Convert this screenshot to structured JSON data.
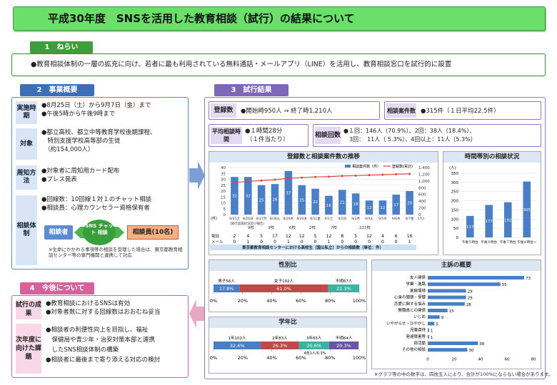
{
  "title": "平成30年度　SNSを活用した教育相談（試行）の結果について",
  "aim": {
    "header": "1　ねらい",
    "text": "●教育相談体制の一層の拡充に向け、若者に最も利用されている無料通話・メールアプリ（LINE）を活用し、教育相談窓口を試行的に設置"
  },
  "overview": {
    "header": "2　事業概要",
    "period": {
      "label": "実施時期",
      "lines": [
        "●8月25日（土）から9月7日（金）まで",
        "●午後5時から午後9時まで"
      ]
    },
    "target": {
      "label": "対象",
      "lines": [
        "●都立高校、都立中等教育学校後期課程、",
        "　特別支援学校高等部の生徒",
        "　（約154,000人）"
      ]
    },
    "notice": {
      "label": "周知方法",
      "lines": [
        "●対象者に周知用カード配布",
        "●プレス発表"
      ]
    },
    "system": {
      "label": "相談体制",
      "lines": [
        "●回線数：10回線１対１のチャット相談",
        "●相談員：心理カウンセラー資格保有者"
      ],
      "from": "相談者",
      "via": "SNS チャット 相談",
      "to": "相談員(10名)",
      "note": "※生命にかかわる事項等の相談を受理した場合は、東京都教育相談センター等の専門機関と連携して対応"
    }
  },
  "future": {
    "header": "4　今後について",
    "results": {
      "label": "試行の成果",
      "lines": [
        "●教育相談におけるSNSは有効",
        "●対象者数に対する回線数はおおむね妥当"
      ]
    },
    "issues": {
      "label": "次年度に向けた課題",
      "lines": [
        "●相談者の利便性向上を目指し、福祉",
        "　保健局や青少年・治安対策本部と連携",
        "　したSNS相談体制の構築",
        "●相談者に最後まで寄り添える対応の検討"
      ]
    }
  },
  "results": {
    "header": "3　試行結果",
    "registrations": {
      "label": "登録数",
      "value": "●開始時950人 ⇒ 終了時1,210人"
    },
    "cases": {
      "label": "相談案件数",
      "value": "●315件（１日平均22.5件）"
    },
    "avg_time": {
      "label": "平均相談時間",
      "value": "●１時間28分",
      "sub": "（１件当たり）"
    },
    "count": {
      "label": "相談回数",
      "lines": [
        "●１回：146人（70.9%）、2回：38人（18.4%）、",
        "　3回：　11人（  5.3%）、4回以上：11人（5.3%）"
      ]
    },
    "trend": {
      "title": "登録数と相談案件数の推移",
      "legend": [
        "相談案件数（件）",
        "登録数(累計)"
      ],
      "yleft": [
        "40",
        "35",
        "30",
        "25",
        "20",
        "15",
        "10",
        "5",
        "0"
      ],
      "yright": [
        "1,400",
        "1,200",
        "1,000",
        "800",
        "600",
        "400",
        "200",
        "0"
      ],
      "note": "（試行実施状況及び報告）",
      "xunit": "(件)",
      "yunit": "(人)"
    },
    "school_bar": {
      "label": "東京都教育相談センターにおける高校生（国公私立）からの相談数（単位：件）",
      "row_label": "電話",
      "row2_label": "メール"
    },
    "time_band": {
      "title": "時間帯別の相談状況",
      "unit": "(人)",
      "yticks": [
        "350",
        "300",
        "250",
        "200",
        "150",
        "100",
        "50",
        "0"
      ]
    },
    "gender": {
      "title": "性別比",
      "labels": [
        "男子56人",
        "女子192人",
        "不明67人"
      ]
    },
    "grade": {
      "title": "学年比",
      "labels": [
        "1年102人",
        "2年83人",
        "3年65人",
        "不明64人"
      ],
      "extra": "4年1人/0.3%"
    },
    "topics": {
      "title": "主訴の概要",
      "note": "※グラフ等の中の数字は、四捨五入により、合計が100%にならない場合があります。"
    }
  },
  "chart_data": [
    {
      "type": "bar",
      "title": "登録数と相談案件数の推移",
      "categories": [
        "8/25土",
        "8/26日",
        "8/27月",
        "8/28火",
        "8/29水",
        "8/30木",
        "8/31金",
        "9/1土",
        "9/2日",
        "9/3月",
        "9/4火",
        "9/5水",
        "9/6木",
        "9/7金"
      ],
      "series": [
        {
          "name": "相談案件数（件）",
          "values": [
            32,
            32,
            25,
            26,
            37,
            25,
            22,
            16,
            21,
            18,
            12,
            12,
            17,
            20
          ]
        },
        {
          "name": "登録数(累計)",
          "values": [
            950,
            990,
            1010,
            1040,
            1080,
            1100,
            1120,
            1130,
            1150,
            1160,
            1175,
            1185,
            1200,
            1210
          ]
        }
      ],
      "ylim": [
        0,
        40
      ],
      "y2lim": [
        0,
        1400
      ],
      "table": {
        "電話": [
          2,
          4,
          5,
          17,
          12,
          12,
          5,
          12,
          8,
          5,
          12,
          4,
          6,
          16
        ],
        "メール": [
          0,
          1,
          0,
          0,
          1,
          0,
          0,
          1,
          0,
          0,
          0,
          0,
          0,
          1
        ]
      },
      "annotations": [
        "9校",
        "3校",
        "6校",
        "2校",
        "7校",
        "221校"
      ]
    },
    {
      "type": "bar",
      "title": "時間帯別の相談状況",
      "categories": [
        "午後５時台",
        "午後６時台",
        "午後７時台",
        "午後８時台～"
      ],
      "values": [
        117,
        177,
        192,
        305
      ],
      "ylim": [
        0,
        350
      ]
    },
    {
      "type": "bar",
      "title": "性別比",
      "categories": [
        "男子",
        "女子",
        "不明"
      ],
      "values": [
        17.8,
        61.0,
        21.3
      ],
      "xlim": [
        0,
        100
      ],
      "xticks": [
        "0%",
        "20%",
        "40%",
        "60%",
        "80%",
        "100%"
      ]
    },
    {
      "type": "bar",
      "title": "学年比",
      "categories": [
        "1年",
        "2年",
        "3年",
        "不明"
      ],
      "values": [
        32.4,
        26.3,
        20.6,
        20.3
      ],
      "xlim": [
        0,
        100
      ],
      "xticks": [
        "0%",
        "20%",
        "40%",
        "60%",
        "80%",
        "100%"
      ]
    },
    {
      "type": "bar",
      "title": "主訴の概要",
      "categories": [
        "友人関係",
        "学業・進路",
        "家庭環境",
        "心身の健康・保健",
        "恋愛に関する悩み",
        "教職員との関係",
        "いじめ",
        "いやがらせ・ひやかし",
        "児童虐待",
        "発達障害等",
        "部活動",
        "その他の相談"
      ],
      "values": [
        73,
        55,
        29,
        29,
        28,
        15,
        9,
        5,
        1,
        1,
        38,
        30
      ],
      "xlim": [
        0,
        80
      ],
      "xticks": [
        "0",
        "20",
        "40",
        "60",
        "80"
      ]
    }
  ],
  "colors": {
    "green": "#6ae06a",
    "blue": "#5a86c2",
    "bar": "#4a7fc6",
    "purple": "#8e7cc3",
    "pink": "#d8619c",
    "red": "#d94848",
    "teal": "#3ab4a0"
  }
}
